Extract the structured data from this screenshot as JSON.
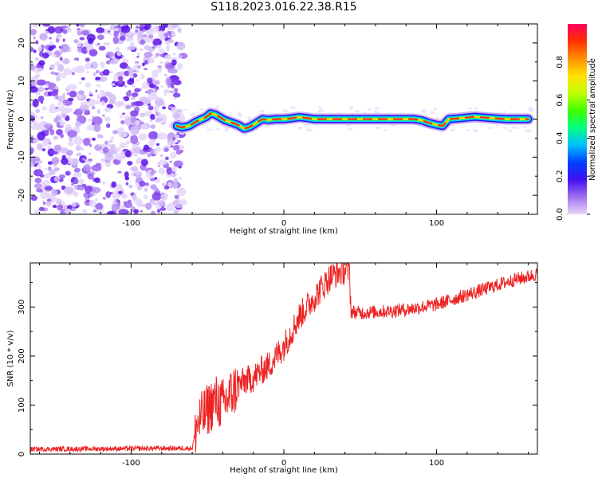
{
  "figure": {
    "title": "S118.2023.016.22.38.R15"
  },
  "chart_data": [
    {
      "type": "heatmap",
      "xlabel": "Height of straight line (km)",
      "ylabel": "Frequency (Hz)",
      "xlim": [
        -166,
        166
      ],
      "ylim": [
        -25,
        25
      ],
      "xticks": [
        -100,
        0,
        100
      ],
      "yticks": [
        -20,
        -10,
        0,
        10,
        20
      ],
      "colorbar": {
        "label": "Normalized spectral amplitude",
        "range": [
          0,
          1
        ],
        "ticks": [
          0.0,
          0.2,
          0.4,
          0.6,
          0.8
        ],
        "colormap": [
          "#e8d8f8",
          "#a070f0",
          "#4010f0",
          "#0040ff",
          "#00c0ff",
          "#00ff80",
          "#40ff00",
          "#c0ff00",
          "#ffe000",
          "#ff9000",
          "#ff3000",
          "#ff0060"
        ]
      },
      "noise_region_x": [
        -166,
        -69
      ],
      "trace": {
        "x": [
          -70,
          -67,
          -62,
          -58,
          -55,
          -51,
          -48,
          -45,
          -42,
          -39,
          -35,
          -30,
          -26,
          -22,
          -18,
          -14,
          -10,
          -5,
          0,
          5,
          10,
          15,
          20,
          30,
          40,
          50,
          60,
          70,
          80,
          85,
          90,
          95,
          100,
          104,
          108,
          115,
          125,
          135,
          145,
          160
        ],
        "y": [
          -1.8,
          -2.2,
          -1.8,
          -0.8,
          -0.2,
          0.5,
          1.5,
          1.2,
          0.5,
          -0.2,
          -0.8,
          -1.5,
          -2.5,
          -2.0,
          -1.0,
          0.0,
          -0.2,
          0.0,
          0.0,
          0.2,
          0.5,
          0.3,
          0.0,
          0.0,
          0.0,
          0.0,
          0.0,
          0.0,
          0.0,
          0.0,
          -0.3,
          -1.0,
          -1.5,
          -1.8,
          0.0,
          0.2,
          0.6,
          0.3,
          0.0,
          0.0
        ]
      }
    },
    {
      "type": "line",
      "xlabel": "Height of straight line (km)",
      "ylabel": "SNR (10 * v/v)",
      "xlim": [
        -166,
        166
      ],
      "ylim": [
        0,
        390
      ],
      "xticks": [
        -100,
        0,
        100
      ],
      "yticks": [
        0,
        100,
        200,
        300
      ],
      "color": "#ee2222",
      "series": [
        {
          "x": [
            -166,
            -60,
            -57,
            -50,
            -45,
            -40,
            -35,
            -30,
            -25,
            -20,
            -15,
            -10,
            -5,
            0,
            5,
            10,
            15,
            20,
            25,
            30,
            35,
            40,
            43,
            44,
            45,
            50,
            60,
            70,
            80,
            90,
            100,
            110,
            120,
            130,
            140,
            150,
            160,
            166
          ],
          "y": [
            10,
            12,
            60,
            90,
            110,
            100,
            120,
            140,
            150,
            155,
            170,
            180,
            200,
            220,
            250,
            280,
            300,
            320,
            340,
            360,
            370,
            375,
            375,
            290,
            290,
            288,
            290,
            292,
            295,
            300,
            305,
            315,
            325,
            335,
            345,
            355,
            362,
            368
          ]
        }
      ]
    }
  ]
}
